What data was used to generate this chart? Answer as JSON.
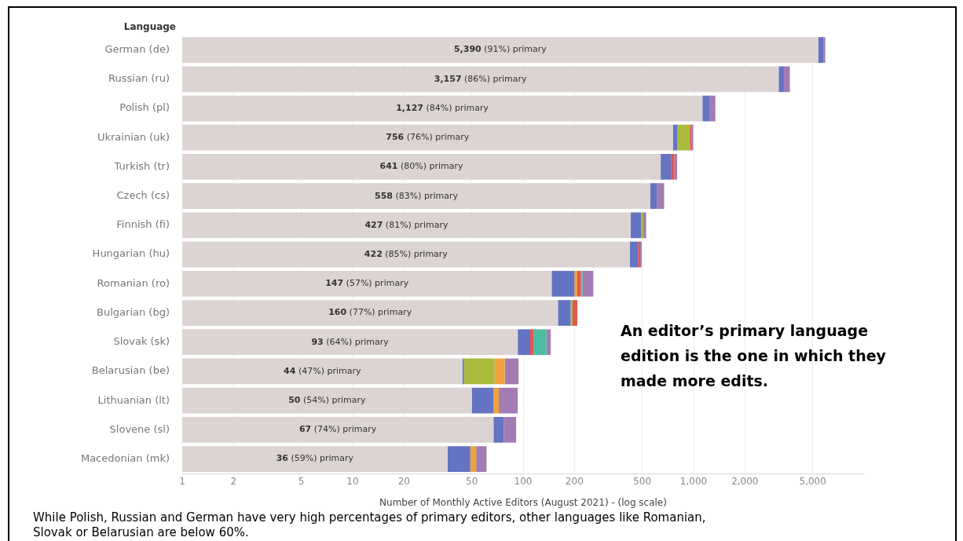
{
  "chart_data": {
    "type": "bar",
    "orientation": "horizontal",
    "stacked": true,
    "log": "x",
    "grid": "x",
    "legend": false,
    "ylabel": "Language",
    "xlabel": "Number of Monthly Active Editors (August 2021) - (log scale)",
    "categories": [
      "German (de)",
      "Russian (ru)",
      "Polish (pl)",
      "Ukrainian (uk)",
      "Turkish (tr)",
      "Czech (cs)",
      "Finnish (fi)",
      "Hungarian (hu)",
      "Romanian (ro)",
      "Bulgarian (bg)",
      "Slovak (sk)",
      "Belarusian (be)",
      "Lithuanian (lt)",
      "Slovene (sl)",
      "Macedonian (mk)"
    ],
    "xlim": [
      1,
      10000
    ],
    "xticks": [
      1,
      2,
      5,
      10,
      20,
      50,
      100,
      200,
      500,
      {
        "value": 1000,
        "label": "1,000"
      },
      {
        "value": 2000,
        "label": "2,000"
      },
      {
        "value": 5000,
        "label": "5,000"
      }
    ],
    "series": [
      {
        "color": "#dbd4d2",
        "values": [
          5390,
          3157,
          1127,
          756,
          641,
          558,
          427,
          422,
          147,
          160,
          93,
          44,
          50,
          67,
          36
        ],
        "value_labels": [
          "5,390 (91%) primary",
          "3,157 (86%) primary",
          "1,127 (84%) primary",
          "756 (76%) primary",
          "641 (80%) primary",
          "558 (83%) primary",
          "427 (81%) primary",
          "422 (85%) primary",
          "147 (57%) primary",
          "160 (77%) primary",
          "93 (64%) primary",
          "44 (47%) primary",
          "50 (54%) primary",
          "67 (74%) primary",
          "36 (59%) primary"
        ]
      },
      {
        "color": "#6473c2",
        "values": [
          380,
          230,
          120,
          45,
          95,
          50,
          65,
          50,
          53,
          30,
          17,
          1,
          17,
          10,
          13
        ]
      },
      {
        "color": "#a9ba3c",
        "values": [
          null,
          null,
          null,
          150,
          null,
          null,
          15,
          null,
          null,
          5,
          null,
          23,
          null,
          null,
          null
        ]
      },
      {
        "color": "#f0a23b",
        "values": [
          null,
          null,
          null,
          null,
          null,
          null,
          null,
          null,
          8,
          null,
          null,
          10,
          5,
          null,
          4
        ]
      },
      {
        "color": "#e2564f",
        "values": [
          null,
          null,
          null,
          25,
          35,
          null,
          null,
          14,
          10,
          13,
          5,
          null,
          null,
          null,
          null
        ]
      },
      {
        "color": "#4dbba2",
        "values": [
          null,
          null,
          null,
          null,
          null,
          null,
          null,
          null,
          5,
          null,
          22,
          null,
          null,
          null,
          null
        ]
      },
      {
        "color": "#a37cb3",
        "values": [
          153,
          284,
          95,
          19,
          30,
          64,
          20,
          10,
          35,
          null,
          8,
          16,
          21,
          14,
          8
        ]
      }
    ],
    "annotations": [
      "An editor’s primary language edition is the one in which they made more edits.",
      "While Polish, Russian and German have very high percentages of primary editors, other languages like Romanian, Slovak or Belarusian are below 60%."
    ]
  }
}
